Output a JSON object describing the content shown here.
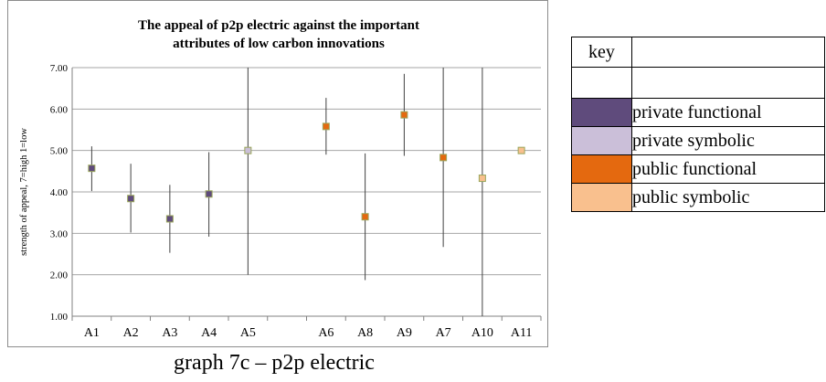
{
  "chart_data": {
    "type": "scatter",
    "title_lines": [
      "The appeal of p2p electric against the important",
      "attributes of low carbon innovations"
    ],
    "ylabel": "strength of appeal, 7=high 1=low",
    "xlabel": "",
    "ylim": [
      1,
      7
    ],
    "yticks": [
      "1.00",
      "2.00",
      "3.00",
      "4.00",
      "5.00",
      "6.00",
      "7.00"
    ],
    "grid": true,
    "points": [
      {
        "label": "A1",
        "value": 4.57,
        "low": 4.02,
        "high": 5.1,
        "category": "private functional"
      },
      {
        "label": "A2",
        "value": 3.84,
        "low": 3.02,
        "high": 4.68,
        "category": "private functional"
      },
      {
        "label": "A3",
        "value": 3.35,
        "low": 2.53,
        "high": 4.17,
        "category": "private functional"
      },
      {
        "label": "A4",
        "value": 3.95,
        "low": 2.92,
        "high": 4.96,
        "category": "private functional"
      },
      {
        "label": "A5",
        "value": 5.0,
        "low": 2.0,
        "high": 7.0,
        "category": "private symbolic"
      },
      {
        "label": "",
        "value": null,
        "low": null,
        "high": null,
        "category": "gap"
      },
      {
        "label": "A6",
        "value": 5.58,
        "low": 4.9,
        "high": 6.27,
        "category": "public functional"
      },
      {
        "label": "A8",
        "value": 3.4,
        "low": 1.87,
        "high": 4.93,
        "category": "public functional"
      },
      {
        "label": "A9",
        "value": 5.86,
        "low": 4.87,
        "high": 6.85,
        "category": "public functional"
      },
      {
        "label": "A7",
        "value": 4.83,
        "low": 2.67,
        "high": 7.0,
        "category": "public functional"
      },
      {
        "label": "A10",
        "value": 4.33,
        "low": 1.0,
        "high": 7.0,
        "category": "public symbolic"
      },
      {
        "label": "A11",
        "value": 5.0,
        "low": null,
        "high": null,
        "category": "public symbolic"
      }
    ]
  },
  "key": {
    "header": "key",
    "items": [
      {
        "label": "private functional",
        "color": "#5f4b7c"
      },
      {
        "label": "private symbolic",
        "color": "#cbbfd9"
      },
      {
        "label": "public functional",
        "color": "#e4690f"
      },
      {
        "label": "public symbolic",
        "color": "#f9c08e"
      }
    ]
  },
  "colors": {
    "private functional": "#5f4b7c",
    "private symbolic": "#cbbfd9",
    "public functional": "#e4690f",
    "public symbolic": "#f9c08e",
    "marker_outline": "#9aa65c"
  },
  "caption": "graph 7c – p2p electric"
}
